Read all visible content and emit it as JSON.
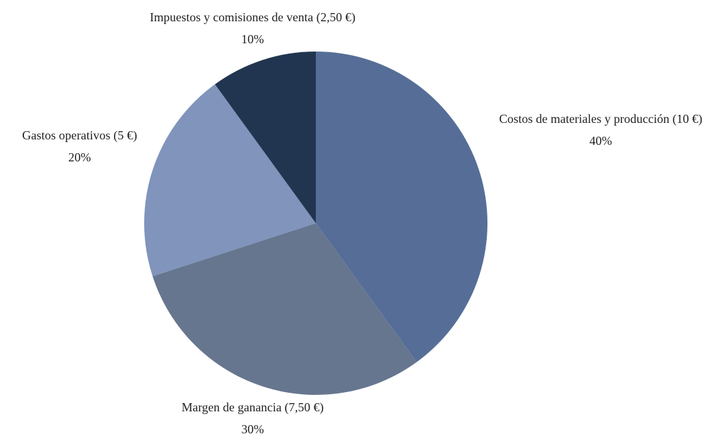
{
  "chart_data": {
    "type": "pie",
    "categories": [
      "Costos de materiales y producción (10 €)",
      "Margen de ganancia (7,50 €)",
      "Gastos operativos (5 €)",
      "Impuestos y comisiones de venta (2,50 €)"
    ],
    "values": [
      40,
      30,
      20,
      10
    ],
    "value_labels": [
      "40%",
      "30%",
      "20%",
      "10%"
    ],
    "colors": [
      "#566e97",
      "#67768f",
      "#8094bc",
      "#223550"
    ]
  }
}
